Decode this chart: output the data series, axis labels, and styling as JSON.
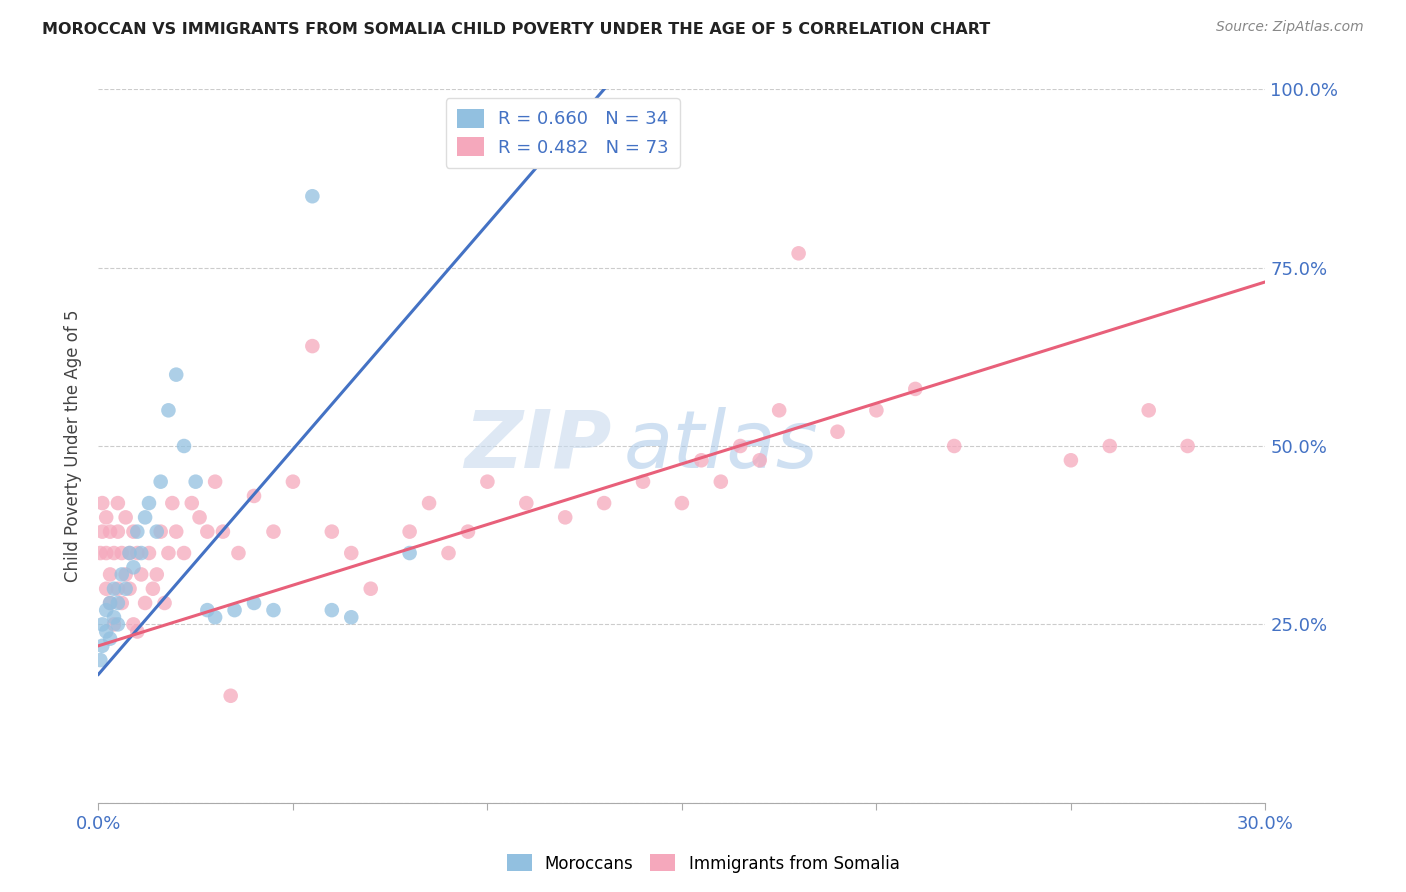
{
  "title": "MOROCCAN VS IMMIGRANTS FROM SOMALIA CHILD POVERTY UNDER THE AGE OF 5 CORRELATION CHART",
  "source": "Source: ZipAtlas.com",
  "ylabel": "Child Poverty Under the Age of 5",
  "x_min": 0.0,
  "x_max": 0.3,
  "y_min": 0.0,
  "y_max": 1.0,
  "moroccan_R": 0.66,
  "moroccan_N": 34,
  "somalia_R": 0.482,
  "somalia_N": 73,
  "blue_color": "#92C0E0",
  "pink_color": "#F5A8BC",
  "blue_line_color": "#4472C4",
  "pink_line_color": "#E8607A",
  "tick_color": "#4472C4",
  "watermark_color": "#C8DAEE",
  "blue_line_x0": 0.0,
  "blue_line_y0": 0.18,
  "blue_line_x1": 0.13,
  "blue_line_y1": 1.0,
  "pink_line_x0": 0.0,
  "pink_line_y0": 0.22,
  "pink_line_x1": 0.3,
  "pink_line_y1": 0.73,
  "moroccan_x": [
    0.0005,
    0.001,
    0.001,
    0.002,
    0.002,
    0.003,
    0.003,
    0.004,
    0.004,
    0.005,
    0.005,
    0.006,
    0.007,
    0.008,
    0.009,
    0.01,
    0.011,
    0.012,
    0.013,
    0.015,
    0.016,
    0.018,
    0.02,
    0.022,
    0.025,
    0.028,
    0.03,
    0.035,
    0.04,
    0.045,
    0.055,
    0.06,
    0.065,
    0.08
  ],
  "moroccan_y": [
    0.2,
    0.22,
    0.25,
    0.24,
    0.27,
    0.23,
    0.28,
    0.26,
    0.3,
    0.25,
    0.28,
    0.32,
    0.3,
    0.35,
    0.33,
    0.38,
    0.35,
    0.4,
    0.42,
    0.38,
    0.45,
    0.55,
    0.6,
    0.5,
    0.45,
    0.27,
    0.26,
    0.27,
    0.28,
    0.27,
    0.85,
    0.27,
    0.26,
    0.35
  ],
  "somalia_x": [
    0.0005,
    0.001,
    0.001,
    0.002,
    0.002,
    0.002,
    0.003,
    0.003,
    0.003,
    0.004,
    0.004,
    0.005,
    0.005,
    0.005,
    0.006,
    0.006,
    0.007,
    0.007,
    0.008,
    0.008,
    0.009,
    0.009,
    0.01,
    0.01,
    0.011,
    0.012,
    0.013,
    0.014,
    0.015,
    0.016,
    0.017,
    0.018,
    0.019,
    0.02,
    0.022,
    0.024,
    0.026,
    0.028,
    0.03,
    0.032,
    0.034,
    0.036,
    0.04,
    0.045,
    0.05,
    0.055,
    0.06,
    0.065,
    0.07,
    0.08,
    0.085,
    0.09,
    0.095,
    0.1,
    0.11,
    0.12,
    0.13,
    0.14,
    0.15,
    0.155,
    0.16,
    0.165,
    0.17,
    0.175,
    0.18,
    0.19,
    0.2,
    0.21,
    0.22,
    0.25,
    0.26,
    0.27,
    0.28
  ],
  "somalia_y": [
    0.35,
    0.38,
    0.42,
    0.3,
    0.35,
    0.4,
    0.28,
    0.32,
    0.38,
    0.25,
    0.35,
    0.3,
    0.38,
    0.42,
    0.28,
    0.35,
    0.32,
    0.4,
    0.35,
    0.3,
    0.38,
    0.25,
    0.24,
    0.35,
    0.32,
    0.28,
    0.35,
    0.3,
    0.32,
    0.38,
    0.28,
    0.35,
    0.42,
    0.38,
    0.35,
    0.42,
    0.4,
    0.38,
    0.45,
    0.38,
    0.15,
    0.35,
    0.43,
    0.38,
    0.45,
    0.64,
    0.38,
    0.35,
    0.3,
    0.38,
    0.42,
    0.35,
    0.38,
    0.45,
    0.42,
    0.4,
    0.42,
    0.45,
    0.42,
    0.48,
    0.45,
    0.5,
    0.48,
    0.55,
    0.77,
    0.52,
    0.55,
    0.58,
    0.5,
    0.48,
    0.5,
    0.55,
    0.5
  ]
}
